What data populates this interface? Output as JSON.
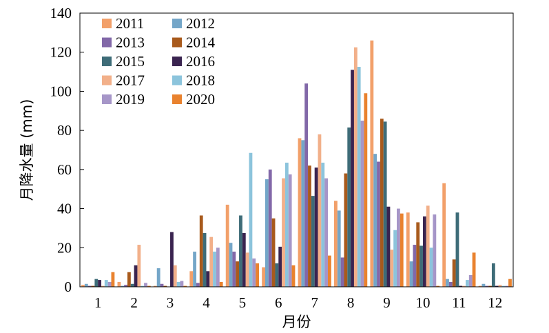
{
  "chart_data": {
    "type": "bar",
    "xlabel": "月份",
    "ylabel": "月降水量 (mm)",
    "ylim": [
      0,
      140
    ],
    "yticks": [
      0,
      20,
      40,
      60,
      80,
      100,
      120,
      140
    ],
    "categories": [
      "1",
      "2",
      "3",
      "4",
      "5",
      "6",
      "7",
      "8",
      "9",
      "10",
      "11",
      "12"
    ],
    "grid": false,
    "legend_position": "top-left",
    "series": [
      {
        "name": "2011",
        "color": "#F2A06A",
        "values": [
          1,
          2.5,
          0.5,
          8,
          42,
          10,
          76,
          44,
          126,
          38,
          53,
          0.5
        ]
      },
      {
        "name": "2012",
        "color": "#74A6C8",
        "values": [
          1.5,
          0.5,
          9.5,
          18,
          22.5,
          55,
          75,
          39,
          68,
          13,
          4,
          1.5
        ]
      },
      {
        "name": "2013",
        "color": "#8268A8",
        "values": [
          0.5,
          1,
          1.5,
          2,
          18,
          60,
          104,
          15,
          64,
          21.5,
          2.5,
          0.5
        ]
      },
      {
        "name": "2014",
        "color": "#A85A1C",
        "values": [
          0.5,
          7.5,
          0.5,
          36.5,
          13,
          35,
          62,
          58,
          86,
          33,
          14,
          0.5
        ]
      },
      {
        "name": "2015",
        "color": "#3E6C78",
        "values": [
          4,
          1.5,
          0,
          27.5,
          36.5,
          12,
          46.5,
          81.5,
          84.5,
          21,
          38,
          12
        ]
      },
      {
        "name": "2016",
        "color": "#3A2450",
        "values": [
          3.5,
          11,
          28,
          8,
          27.5,
          20.5,
          61,
          111,
          41,
          36,
          0.5,
          0.5
        ]
      },
      {
        "name": "2017",
        "color": "#F2B08A",
        "values": [
          0.5,
          21.5,
          11,
          25.5,
          17.5,
          55.5,
          78,
          122.5,
          19,
          41.5,
          0.5,
          1
        ]
      },
      {
        "name": "2018",
        "color": "#8CC4DC",
        "values": [
          3.5,
          0.5,
          2.5,
          18,
          68.5,
          63.5,
          63.5,
          112.5,
          29,
          20,
          3.5,
          0.5
        ]
      },
      {
        "name": "2019",
        "color": "#A696C8",
        "values": [
          2.5,
          2,
          3,
          20,
          14.5,
          57.5,
          55.5,
          85,
          40,
          37,
          6,
          0.5
        ]
      },
      {
        "name": "2020",
        "color": "#E9822E",
        "values": [
          7.5,
          0.5,
          0.5,
          2.5,
          12,
          11,
          16,
          99,
          37.5,
          0.5,
          17.5,
          4
        ]
      }
    ]
  }
}
